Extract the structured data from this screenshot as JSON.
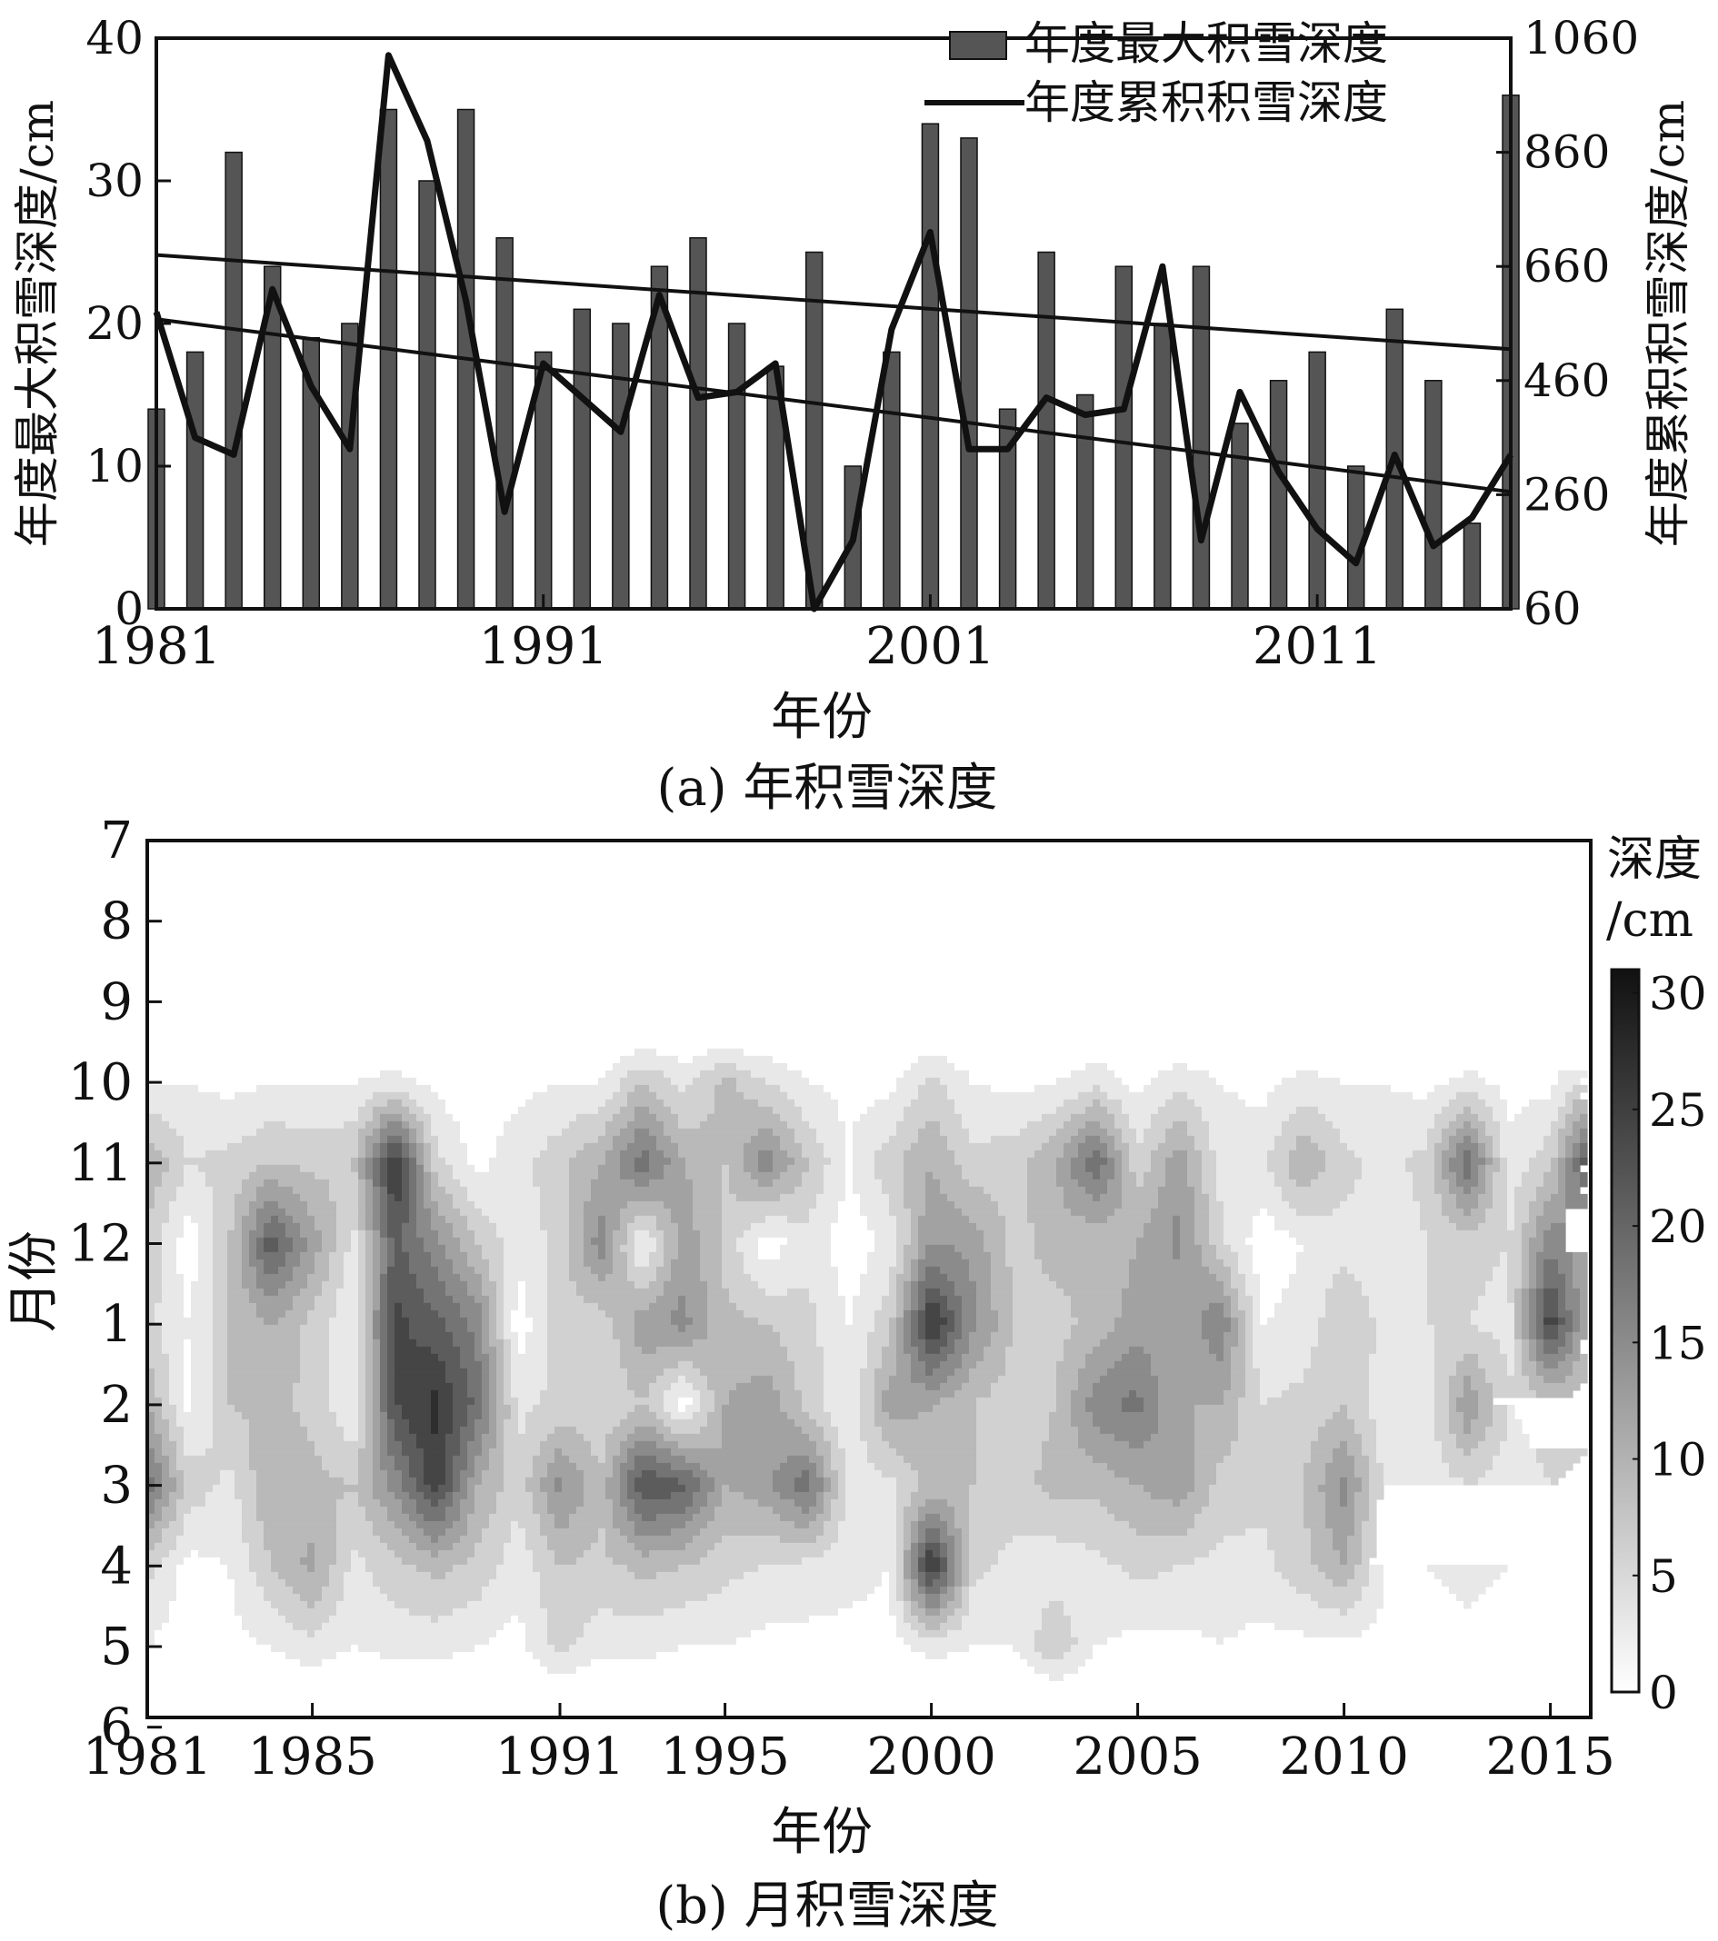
{
  "chart_data": [
    {
      "type": "bar",
      "caption": "(a) 年积雪深度",
      "title": "",
      "xlabel": "年份",
      "ylabel": "年度最大积雪深度/cm",
      "ylabel_right": "年度累积积雪深度/cm",
      "ylim": [
        0,
        40
      ],
      "ylim_right": [
        60,
        1060
      ],
      "xlim": [
        1981,
        2016
      ],
      "x_ticks": [
        "1981",
        "1991",
        "2001",
        "2011"
      ],
      "y_ticks": [
        "0",
        "10",
        "20",
        "30",
        "40"
      ],
      "y_ticks_right": [
        "60",
        "260",
        "460",
        "660",
        "860",
        "1060"
      ],
      "legend_position": "top-right",
      "grid": false,
      "x": [
        1981,
        1982,
        1983,
        1984,
        1985,
        1986,
        1987,
        1988,
        1989,
        1990,
        1991,
        1992,
        1993,
        1994,
        1995,
        1996,
        1997,
        1998,
        1999,
        2000,
        2001,
        2002,
        2003,
        2004,
        2005,
        2006,
        2007,
        2008,
        2009,
        2010,
        2011,
        2012,
        2013,
        2014,
        2015,
        2016
      ],
      "series": [
        {
          "name": "年度最大积雪深度",
          "kind": "bar",
          "axis": "left",
          "color": "#555555",
          "values": [
            14,
            18,
            32,
            24,
            19,
            20,
            35,
            30,
            35,
            26,
            18,
            21,
            20,
            24,
            26,
            20,
            17,
            25,
            10,
            18,
            34,
            33,
            14,
            25,
            15,
            24,
            20,
            24,
            13,
            16,
            18,
            10,
            21,
            16,
            6,
            36
          ]
        },
        {
          "name": "年度累积积雪深度",
          "kind": "line",
          "axis": "right",
          "color": "#111111",
          "values": [
            580,
            360,
            330,
            620,
            450,
            340,
            1030,
            880,
            600,
            230,
            490,
            430,
            370,
            610,
            430,
            440,
            490,
            60,
            180,
            550,
            720,
            340,
            340,
            430,
            400,
            410,
            660,
            180,
            440,
            300,
            200,
            140,
            330,
            170,
            220,
            330
          ]
        }
      ],
      "trend_lines": [
        {
          "axis": "left",
          "x": [
            1981,
            2016
          ],
          "values": [
            24.8,
            18.2
          ]
        },
        {
          "axis": "left",
          "x": [
            1981,
            2016
          ],
          "values": [
            20.3,
            8.2
          ]
        }
      ]
    },
    {
      "type": "heatmap",
      "subtype": "contour",
      "caption": "(b) 月积雪深度",
      "title": "",
      "xlabel": "年份",
      "ylabel": "月份",
      "colorbar_label_1": "深度",
      "colorbar_label_2": "/cm",
      "colorbar_range": [
        0,
        31
      ],
      "colorbar_ticks": [
        "0",
        "5",
        "10",
        "15",
        "20",
        "25",
        "30"
      ],
      "x_ticks": [
        "1981",
        "1985",
        "1991",
        "1995",
        "2000",
        "2005",
        "2010",
        "2015"
      ],
      "x_tick_values": [
        1981,
        1985,
        1991,
        1995,
        2000,
        2005,
        2010,
        2015
      ],
      "y_ticks": [
        "7",
        "8",
        "9",
        "10",
        "11",
        "12",
        "1",
        "2",
        "3",
        "4",
        "5",
        "6"
      ],
      "levels": [
        0,
        3,
        6,
        9,
        12,
        15,
        18,
        21,
        24,
        27,
        30
      ],
      "months": [
        "10",
        "11",
        "12",
        "1",
        "2",
        "3",
        "4",
        "5"
      ],
      "x": [
        1981,
        1982,
        1983,
        1984,
        1985,
        1986,
        1987,
        1988,
        1989,
        1990,
        1991,
        1992,
        1993,
        1994,
        1995,
        1996,
        1997,
        1998,
        1999,
        2000,
        2001,
        2002,
        2003,
        2004,
        2005,
        2006,
        2007,
        2008,
        2009,
        2010,
        2011,
        2012,
        2013,
        2014,
        2015,
        2016
      ],
      "z": [
        [
          3,
          3,
          2,
          3,
          3,
          3,
          4,
          2,
          1,
          2,
          3,
          3,
          9,
          5,
          10,
          6,
          3,
          2,
          2,
          7,
          3,
          2,
          3,
          5,
          2,
          5,
          3,
          2,
          4,
          3,
          3,
          2,
          4,
          2,
          2,
          8
        ],
        [
          12,
          6,
          7,
          9,
          8,
          9,
          28,
          7,
          2,
          5,
          8,
          12,
          20,
          12,
          9,
          17,
          9,
          3,
          8,
          12,
          7,
          8,
          12,
          21,
          7,
          14,
          5,
          5,
          12,
          7,
          5,
          7,
          21,
          4,
          8,
          25
        ],
        [
          8,
          1,
          9,
          23,
          14,
          5,
          22,
          16,
          9,
          4,
          7,
          17,
          2,
          14,
          8,
          1,
          5,
          1,
          4,
          15,
          14,
          8,
          10,
          9,
          12,
          16,
          7,
          1,
          3,
          5,
          4,
          6,
          7,
          6,
          17,
          12
        ],
        [
          7,
          3,
          9,
          12,
          8,
          3,
          25,
          22,
          17,
          1,
          8,
          7,
          14,
          16,
          10,
          9,
          7,
          3,
          8,
          28,
          16,
          9,
          8,
          10,
          14,
          12,
          18,
          3,
          4,
          9,
          5,
          6,
          6,
          5,
          26,
          10
        ],
        [
          12,
          2,
          9,
          10,
          8,
          3,
          24,
          28,
          20,
          5,
          7,
          6,
          9,
          1,
          12,
          14,
          8,
          3,
          14,
          12,
          9,
          7,
          9,
          17,
          19,
          12,
          12,
          6,
          7,
          9,
          4,
          4,
          15,
          6,
          8,
          7
        ],
        [
          20,
          8,
          5,
          12,
          10,
          9,
          16,
          26,
          12,
          7,
          16,
          10,
          24,
          22,
          12,
          14,
          20,
          5,
          5,
          10,
          9,
          8,
          10,
          10,
          12,
          14,
          8,
          7,
          9,
          16,
          5,
          4,
          6,
          4,
          6,
          5
        ],
        [
          7,
          2,
          3,
          9,
          13,
          5,
          8,
          10,
          8,
          4,
          9,
          8,
          10,
          9,
          7,
          6,
          5,
          4,
          3,
          28,
          7,
          5,
          4,
          5,
          7,
          6,
          5,
          5,
          8,
          12,
          3,
          3,
          4,
          3,
          3,
          3
        ],
        [
          3,
          1,
          2,
          3,
          5,
          3,
          4,
          4,
          3,
          2,
          7,
          4,
          4,
          3,
          3,
          2,
          2,
          2,
          2,
          4,
          3,
          3,
          9,
          3,
          2,
          2,
          3,
          2,
          2,
          2,
          2,
          1,
          2,
          1,
          2,
          2
        ]
      ]
    }
  ]
}
